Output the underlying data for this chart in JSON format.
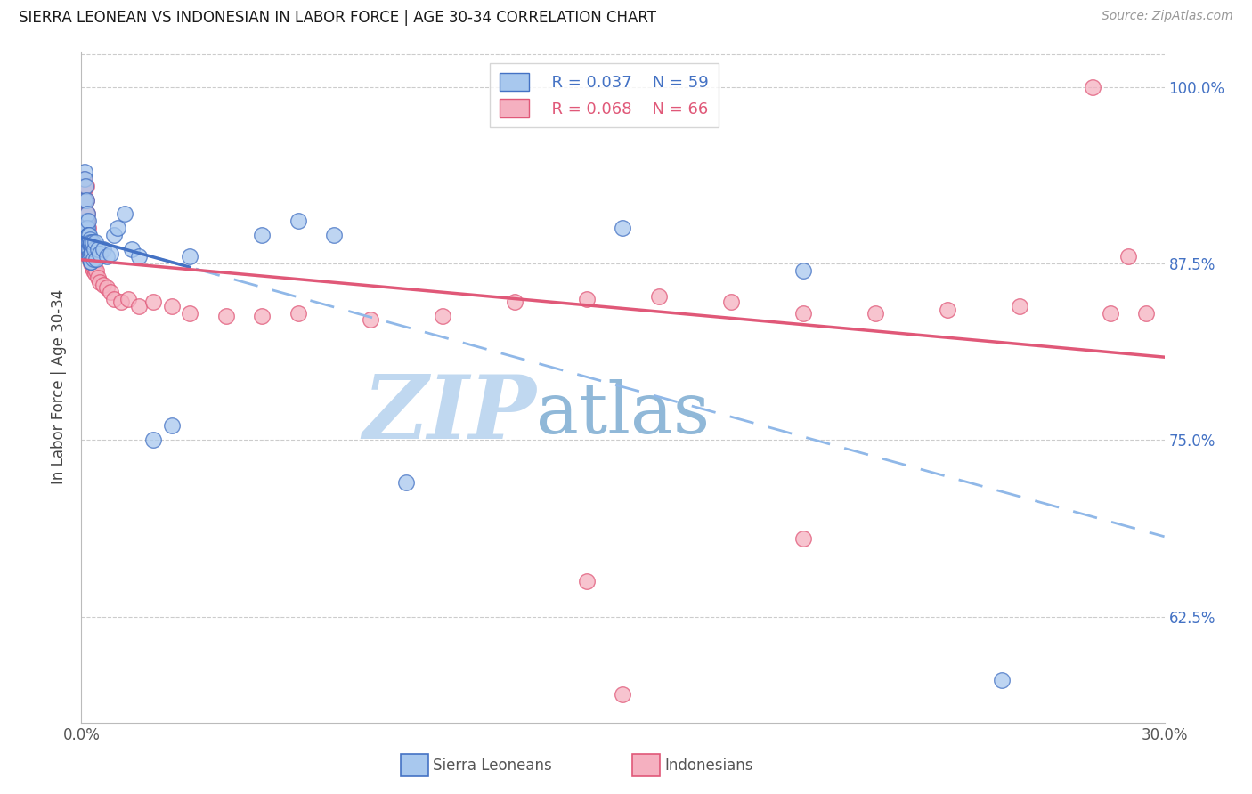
{
  "title": "SIERRA LEONEAN VS INDONESIAN IN LABOR FORCE | AGE 30-34 CORRELATION CHART",
  "source": "Source: ZipAtlas.com",
  "ylabel": "In Labor Force | Age 30-34",
  "xmin": 0.0,
  "xmax": 0.3,
  "ymin": 0.55,
  "ymax": 1.025,
  "yticks": [
    0.625,
    0.75,
    0.875,
    1.0
  ],
  "ytick_labels": [
    "62.5%",
    "75.0%",
    "87.5%",
    "100.0%"
  ],
  "color_blue": "#a8c8ee",
  "color_pink": "#f5b0c0",
  "line_blue": "#4472c4",
  "line_pink": "#e05878",
  "line_dashed_blue": "#90b8e8",
  "legend_r1": "R = 0.037",
  "legend_n1": "N = 59",
  "legend_r2": "R = 0.068",
  "legend_n2": "N = 66",
  "watermark_zip": "ZIP",
  "watermark_atlas": "atlas",
  "watermark_color_zip": "#c0d8f0",
  "watermark_color_atlas": "#90b8d8",
  "blue_scatter_x": [
    0.0008,
    0.001,
    0.001,
    0.0012,
    0.0013,
    0.0014,
    0.0014,
    0.0015,
    0.0016,
    0.0016,
    0.0017,
    0.0017,
    0.0018,
    0.0018,
    0.0019,
    0.0019,
    0.002,
    0.002,
    0.0021,
    0.0021,
    0.0022,
    0.0022,
    0.0023,
    0.0023,
    0.0024,
    0.0024,
    0.0025,
    0.0025,
    0.0026,
    0.0026,
    0.0027,
    0.0028,
    0.0029,
    0.003,
    0.0032,
    0.0033,
    0.0035,
    0.0038,
    0.004,
    0.0045,
    0.005,
    0.006,
    0.007,
    0.008,
    0.009,
    0.01,
    0.012,
    0.014,
    0.016,
    0.02,
    0.025,
    0.03,
    0.05,
    0.06,
    0.07,
    0.09,
    0.15,
    0.2,
    0.255
  ],
  "blue_scatter_y": [
    0.94,
    0.935,
    0.92,
    0.93,
    0.92,
    0.895,
    0.905,
    0.9,
    0.91,
    0.895,
    0.89,
    0.9,
    0.895,
    0.905,
    0.89,
    0.895,
    0.885,
    0.895,
    0.885,
    0.895,
    0.88,
    0.89,
    0.88,
    0.892,
    0.878,
    0.888,
    0.876,
    0.888,
    0.876,
    0.888,
    0.89,
    0.885,
    0.882,
    0.888,
    0.89,
    0.878,
    0.885,
    0.89,
    0.878,
    0.885,
    0.882,
    0.885,
    0.88,
    0.882,
    0.895,
    0.9,
    0.91,
    0.885,
    0.88,
    0.75,
    0.76,
    0.88,
    0.895,
    0.905,
    0.895,
    0.72,
    0.9,
    0.87,
    0.58
  ],
  "pink_scatter_x": [
    0.0007,
    0.0009,
    0.001,
    0.0011,
    0.0012,
    0.0013,
    0.0013,
    0.0014,
    0.0015,
    0.0015,
    0.0016,
    0.0016,
    0.0017,
    0.0017,
    0.0018,
    0.0018,
    0.0019,
    0.0019,
    0.002,
    0.0021,
    0.0022,
    0.0023,
    0.0024,
    0.0025,
    0.0026,
    0.0027,
    0.0028,
    0.0029,
    0.003,
    0.0032,
    0.0034,
    0.0036,
    0.0038,
    0.004,
    0.0045,
    0.005,
    0.006,
    0.007,
    0.008,
    0.009,
    0.011,
    0.013,
    0.016,
    0.02,
    0.025,
    0.03,
    0.04,
    0.05,
    0.06,
    0.08,
    0.1,
    0.12,
    0.14,
    0.16,
    0.18,
    0.2,
    0.22,
    0.24,
    0.26,
    0.28,
    0.29,
    0.295,
    0.2,
    0.14,
    0.15,
    0.285
  ],
  "pink_scatter_y": [
    0.935,
    0.93,
    0.925,
    0.92,
    0.93,
    0.93,
    0.91,
    0.91,
    0.92,
    0.905,
    0.91,
    0.895,
    0.905,
    0.895,
    0.9,
    0.89,
    0.895,
    0.88,
    0.895,
    0.885,
    0.89,
    0.88,
    0.885,
    0.878,
    0.875,
    0.88,
    0.875,
    0.878,
    0.872,
    0.875,
    0.87,
    0.872,
    0.868,
    0.87,
    0.865,
    0.862,
    0.86,
    0.858,
    0.855,
    0.85,
    0.848,
    0.85,
    0.845,
    0.848,
    0.845,
    0.84,
    0.838,
    0.838,
    0.84,
    0.835,
    0.838,
    0.848,
    0.85,
    0.852,
    0.848,
    0.84,
    0.84,
    0.842,
    0.845,
    1.0,
    0.88,
    0.84,
    0.68,
    0.65,
    0.57,
    0.84
  ]
}
